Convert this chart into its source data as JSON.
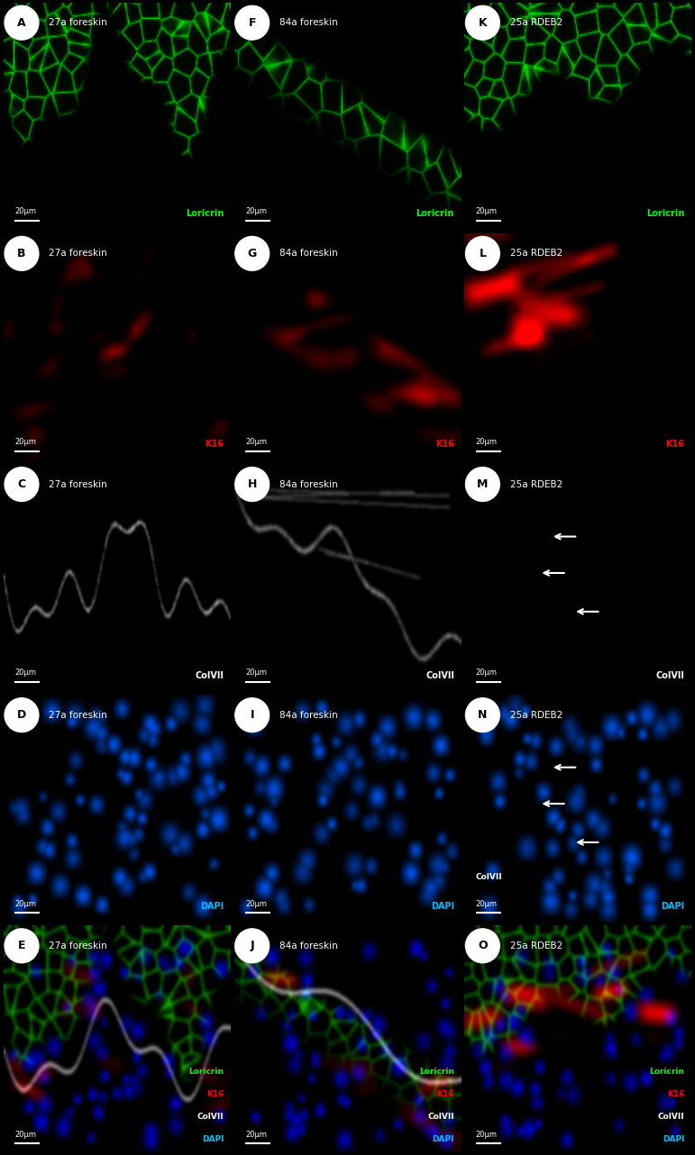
{
  "figure_size": [
    7.71,
    12.82
  ],
  "dpi": 100,
  "background": "#000000",
  "grid": {
    "rows": 5,
    "cols": 3
  },
  "panels": [
    {
      "id": "A",
      "row": 0,
      "col": 0,
      "title": "27a foreskin",
      "stain": "Loricrin",
      "stain_color": "#00ff00",
      "scale": "20μm"
    },
    {
      "id": "F",
      "row": 0,
      "col": 1,
      "title": "84a foreskin",
      "stain": "Loricrin",
      "stain_color": "#00ff00",
      "scale": "20μm"
    },
    {
      "id": "K",
      "row": 0,
      "col": 2,
      "title": "25a RDEB2",
      "stain": "Loricrin",
      "stain_color": "#00ff00",
      "scale": "20μm"
    },
    {
      "id": "B",
      "row": 1,
      "col": 0,
      "title": "27a foreskin",
      "stain": "K16",
      "stain_color": "#ff0000",
      "scale": "20μm"
    },
    {
      "id": "G",
      "row": 1,
      "col": 1,
      "title": "84a foreskin",
      "stain": "K16",
      "stain_color": "#ff0000",
      "scale": "20μm"
    },
    {
      "id": "L",
      "row": 1,
      "col": 2,
      "title": "25a RDEB2",
      "stain": "K16",
      "stain_color": "#ff0000",
      "scale": "20μm"
    },
    {
      "id": "C",
      "row": 2,
      "col": 0,
      "title": "27a foreskin",
      "stain": "ColVII",
      "stain_color": "#ffffff",
      "scale": "20μm"
    },
    {
      "id": "H",
      "row": 2,
      "col": 1,
      "title": "84a foreskin",
      "stain": "ColVII",
      "stain_color": "#ffffff",
      "scale": "20μm"
    },
    {
      "id": "M",
      "row": 2,
      "col": 2,
      "title": "25a RDEB2",
      "stain": "ColVII",
      "stain_color": "#ffffff",
      "scale": "20μm",
      "arrows": true
    },
    {
      "id": "D",
      "row": 3,
      "col": 0,
      "title": "27a foreskin",
      "stain": "DAPI",
      "stain_color": "#00bfff",
      "scale": "20μm"
    },
    {
      "id": "I",
      "row": 3,
      "col": 1,
      "title": "84a foreskin",
      "stain": "DAPI",
      "stain_color": "#00bfff",
      "scale": "20μm"
    },
    {
      "id": "N",
      "row": 3,
      "col": 2,
      "title": "25a RDEB2",
      "stain": "DAPI",
      "stain_color": "#00bfff",
      "scale": "20μm",
      "arrows": true
    },
    {
      "id": "E",
      "row": 4,
      "col": 0,
      "title": "27a foreskin",
      "stains_multi": [
        [
          "Loricrin",
          "#00ff00"
        ],
        [
          "K16",
          "#ff0000"
        ],
        [
          "ColVII",
          "#ffffff"
        ],
        [
          "DAPI",
          "#00bfff"
        ]
      ],
      "scale": "20μm"
    },
    {
      "id": "J",
      "row": 4,
      "col": 1,
      "title": "84a foreskin",
      "stains_multi": [
        [
          "Loricrin",
          "#00ff00"
        ],
        [
          "K16",
          "#ff0000"
        ],
        [
          "ColVII",
          "#ffffff"
        ],
        [
          "DAPI",
          "#00bfff"
        ]
      ],
      "scale": "20μm"
    },
    {
      "id": "O",
      "row": 4,
      "col": 2,
      "title": "25a RDEB2",
      "stains_multi": [
        [
          "Loricrin",
          "#00ff00"
        ],
        [
          "K16",
          "#ff0000"
        ],
        [
          "ColVII",
          "#ffffff"
        ],
        [
          "DAPI",
          "#00bfff"
        ]
      ],
      "scale": "20μm"
    }
  ]
}
